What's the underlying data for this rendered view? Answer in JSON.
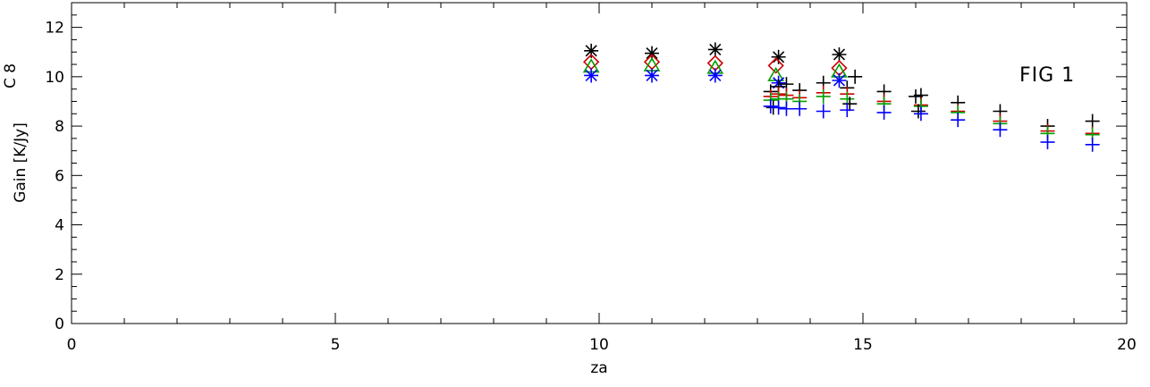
{
  "chart_data": {
    "type": "scatter",
    "title": "",
    "xlabel": "za",
    "ylabel": "Gain  [K/Jy]",
    "corner_label": "C 8",
    "annotation": "FIG   1",
    "xlim": [
      0,
      20
    ],
    "ylim": [
      0,
      13
    ],
    "xticks": [
      0,
      5,
      10,
      15,
      20
    ],
    "yticks": [
      0,
      2,
      4,
      6,
      8,
      10,
      12
    ],
    "grid": false,
    "colors": {
      "black": "#000000",
      "red": "#cc0000",
      "green": "#00a000",
      "blue": "#0000ff"
    },
    "series": [
      {
        "color": "#000000",
        "marker": "asterisk",
        "x": [
          9.85,
          11.0,
          12.2,
          13.4,
          14.55
        ],
        "y": [
          11.05,
          10.95,
          11.1,
          10.8,
          10.9
        ]
      },
      {
        "color": "#cc0000",
        "marker": "diamond",
        "x": [
          9.85,
          11.0,
          12.2,
          13.35,
          14.55
        ],
        "y": [
          10.6,
          10.6,
          10.55,
          10.45,
          10.35
        ]
      },
      {
        "color": "#00a000",
        "marker": "triangle",
        "x": [
          9.85,
          11.0,
          12.2,
          13.35,
          14.55
        ],
        "y": [
          10.4,
          10.45,
          10.35,
          10.05,
          10.2
        ]
      },
      {
        "color": "#0000ff",
        "marker": "asterisk",
        "x": [
          9.85,
          11.0,
          12.2,
          13.4,
          14.55
        ],
        "y": [
          10.05,
          10.05,
          10.05,
          9.75,
          9.85
        ]
      },
      {
        "color": "#000000",
        "marker": "plus",
        "x": [
          13.25,
          13.4,
          13.55,
          13.8,
          14.25,
          14.7,
          14.85,
          15.4,
          16.0,
          16.1,
          16.8,
          17.6,
          18.5,
          19.35
        ],
        "y": [
          9.4,
          9.6,
          9.7,
          9.45,
          9.75,
          9.55,
          10.0,
          9.4,
          9.2,
          9.25,
          8.95,
          8.6,
          8.0,
          8.2
        ]
      },
      {
        "color": "#cc0000",
        "marker": "plus",
        "x": [
          13.25,
          13.4,
          13.55,
          13.8,
          14.25,
          14.7,
          15.4,
          16.1,
          16.8,
          17.6,
          18.5,
          19.35
        ],
        "y": [
          9.2,
          9.3,
          9.25,
          9.15,
          9.35,
          9.3,
          9.0,
          8.85,
          8.6,
          8.2,
          7.8,
          7.7
        ]
      },
      {
        "color": "#00a000",
        "marker": "plus",
        "x": [
          13.25,
          13.4,
          13.55,
          13.8,
          14.25,
          14.7,
          15.4,
          16.1,
          16.8,
          17.6,
          18.5,
          19.35
        ],
        "y": [
          9.05,
          9.1,
          9.1,
          9.0,
          9.2,
          9.1,
          8.9,
          8.8,
          8.55,
          8.1,
          7.7,
          7.65
        ]
      },
      {
        "color": "#000000",
        "marker": "plus",
        "x": [
          13.3,
          14.75,
          16.05
        ],
        "y": [
          8.75,
          8.9,
          8.6
        ]
      },
      {
        "color": "#0000ff",
        "marker": "plus",
        "x": [
          13.25,
          13.4,
          13.55,
          13.8,
          14.25,
          14.7,
          15.4,
          16.1,
          16.8,
          17.6,
          18.5,
          19.35
        ],
        "y": [
          8.8,
          8.75,
          8.7,
          8.7,
          8.6,
          8.65,
          8.55,
          8.5,
          8.25,
          7.85,
          7.35,
          7.25
        ]
      }
    ]
  }
}
